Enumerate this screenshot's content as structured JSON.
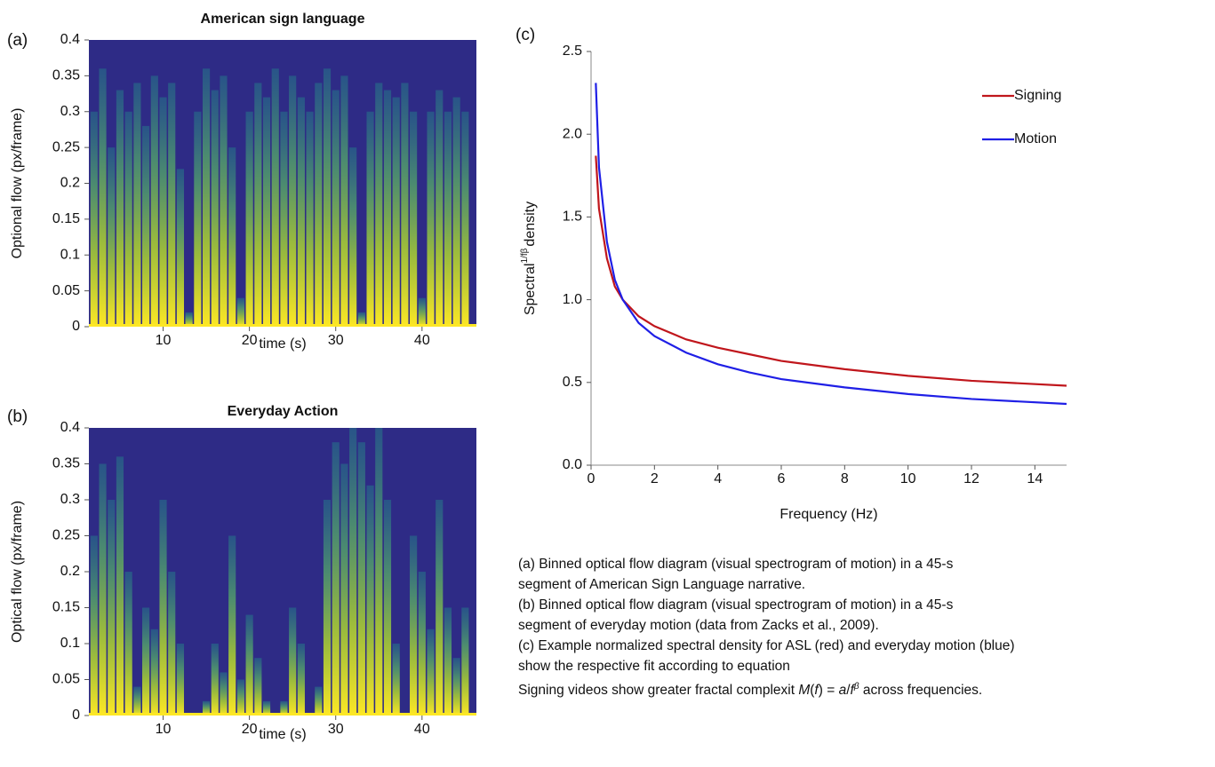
{
  "chart_data": [
    {
      "type": "spectrogram",
      "panel_label": "(a)",
      "title": "American sign language",
      "ylabel": "Optional flow (px/frame)",
      "xlabel": "time (s)",
      "xlim": [
        1.4,
        46.3
      ],
      "xticks": [
        10,
        20,
        30,
        40
      ],
      "ylim": [
        0,
        0.4
      ],
      "yticks": [
        0,
        0.05,
        0.1,
        0.15,
        0.2,
        0.25,
        0.3,
        0.35,
        0.4
      ],
      "background": "#2e2b86",
      "color_scale": [
        "#fde725",
        "#b5de2b",
        "#5ec962",
        "#21918c"
      ],
      "x": [
        2,
        3,
        4,
        5,
        6,
        7,
        8,
        9,
        10,
        11,
        12,
        13,
        14,
        15,
        16,
        17,
        18,
        19,
        20,
        21,
        22,
        23,
        24,
        25,
        26,
        27,
        28,
        29,
        30,
        31,
        32,
        33,
        34,
        35,
        36,
        37,
        38,
        39,
        40,
        41,
        42,
        43,
        44,
        45
      ],
      "values": [
        0.3,
        0.36,
        0.25,
        0.33,
        0.3,
        0.34,
        0.28,
        0.35,
        0.32,
        0.34,
        0.22,
        0.02,
        0.3,
        0.36,
        0.33,
        0.35,
        0.25,
        0.04,
        0.3,
        0.34,
        0.32,
        0.36,
        0.3,
        0.35,
        0.32,
        0.3,
        0.34,
        0.36,
        0.33,
        0.35,
        0.25,
        0.02,
        0.3,
        0.34,
        0.33,
        0.32,
        0.34,
        0.3,
        0.04,
        0.3,
        0.33,
        0.3,
        0.32,
        0.3
      ]
    },
    {
      "type": "spectrogram",
      "panel_label": "(b)",
      "title": "Everyday Action",
      "ylabel": "Optical flow (px/frame)",
      "xlabel": "time (s)",
      "xlim": [
        1.4,
        46.3
      ],
      "xticks": [
        10,
        20,
        30,
        40
      ],
      "ylim": [
        0,
        0.4
      ],
      "yticks": [
        0,
        0.05,
        0.1,
        0.15,
        0.2,
        0.25,
        0.3,
        0.35,
        0.4
      ],
      "background": "#2e2b86",
      "color_scale": [
        "#fde725",
        "#b5de2b",
        "#5ec962",
        "#21918c"
      ],
      "x": [
        2,
        3,
        4,
        5,
        6,
        7,
        8,
        9,
        10,
        11,
        12,
        13,
        14,
        15,
        16,
        17,
        18,
        19,
        20,
        21,
        22,
        23,
        24,
        25,
        26,
        27,
        28,
        29,
        30,
        31,
        32,
        33,
        34,
        35,
        36,
        37,
        38,
        39,
        40,
        41,
        42,
        43,
        44,
        45
      ],
      "values": [
        0.25,
        0.35,
        0.3,
        0.36,
        0.2,
        0.04,
        0.15,
        0.12,
        0.3,
        0.2,
        0.1,
        0,
        0,
        0.02,
        0.1,
        0.06,
        0.25,
        0.05,
        0.14,
        0.08,
        0.02,
        0,
        0.02,
        0.15,
        0.1,
        0,
        0.04,
        0.3,
        0.38,
        0.35,
        0.4,
        0.38,
        0.32,
        0.4,
        0.3,
        0.1,
        0,
        0.25,
        0.2,
        0.12,
        0.3,
        0.15,
        0.08,
        0.15
      ]
    },
    {
      "type": "line",
      "panel_label": "(c)",
      "ylabel": [
        "Spectral",
        "1/fβ",
        "density"
      ],
      "xlabel": "Frequency (Hz)",
      "xlim": [
        0,
        15
      ],
      "xticks": [
        0,
        2,
        4,
        6,
        8,
        10,
        12,
        14
      ],
      "ylim": [
        0,
        2.5
      ],
      "yticks": [
        {
          "value": 0,
          "label": "0.0"
        },
        0.5,
        {
          "value": 1,
          "label": "1.0"
        },
        1.5,
        {
          "value": 2,
          "label": "2.0"
        },
        2.5
      ],
      "legend": "upper right",
      "x": [
        0.15,
        0.25,
        0.5,
        0.75,
        1,
        1.5,
        2,
        3,
        4,
        5,
        6,
        8,
        10,
        12,
        15
      ],
      "series": [
        {
          "name": "Signing",
          "color": "#c0161c",
          "values": [
            1.87,
            1.55,
            1.25,
            1.08,
            1.0,
            0.9,
            0.84,
            0.76,
            0.71,
            0.67,
            0.63,
            0.58,
            0.54,
            0.51,
            0.48
          ]
        },
        {
          "name": "Motion",
          "color": "#1f1fe6",
          "values": [
            2.31,
            1.8,
            1.35,
            1.12,
            1.0,
            0.86,
            0.78,
            0.68,
            0.61,
            0.56,
            0.52,
            0.47,
            0.43,
            0.4,
            0.37
          ]
        }
      ]
    }
  ],
  "caption": {
    "lines": [
      "(a) Binned optical flow diagram (visual spectrogram of motion) in a 45-s",
      "segment of American Sign Language narrative.",
      "(b) Binned optical flow diagram (visual spectrogram of motion) in a 45-s",
      "segment of everyday motion (data from Zacks et al., 2009).",
      "(c) Example normalized spectral density for ASL (red) and everyday motion (blue)",
      "show the respective fit according to equation"
    ],
    "last_line": [
      {
        "text": "Signing videos show greater fractal complexit "
      },
      {
        "text": "M",
        "italic": true
      },
      {
        "text": "("
      },
      {
        "text": "f",
        "italic": true
      },
      {
        "text": ") = "
      },
      {
        "text": "a",
        "italic": true
      },
      {
        "text": "/"
      },
      {
        "text": "f",
        "italic": true
      },
      {
        "text": "β",
        "italic": true,
        "sup": true
      },
      {
        "text": " across frequencies."
      }
    ]
  }
}
